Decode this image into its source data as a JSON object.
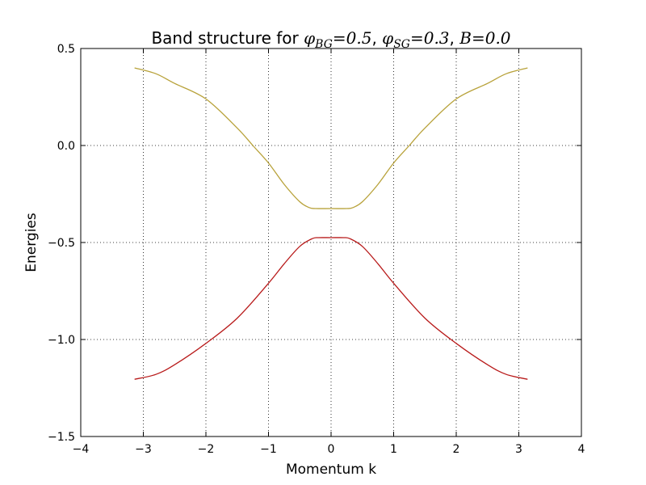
{
  "chart_data": {
    "type": "line",
    "title": "Band structure for φ_BG = 0.5, φ_SG = 0.3, B = 0.0",
    "title_text": "Band structure for ",
    "title_math": [
      {
        "sym": "φ",
        "sub": "BG",
        "eq": "=0.5"
      },
      {
        "sym": "φ",
        "sub": "SG",
        "eq": "=0.3"
      },
      {
        "sym": "B",
        "sub": "",
        "eq": "=0.0"
      }
    ],
    "xlabel": "Momentum k",
    "ylabel": "Energies",
    "xlim": [
      -4,
      4
    ],
    "ylim": [
      -1.5,
      0.5
    ],
    "xticks": [
      -4,
      -3,
      -2,
      -1,
      0,
      1,
      2,
      3,
      4
    ],
    "xtick_labels": [
      "−4",
      "−3",
      "−2",
      "−1",
      "0",
      "1",
      "2",
      "3",
      "4"
    ],
    "yticks": [
      -1.5,
      -1.0,
      -0.5,
      0.0,
      0.5
    ],
    "ytick_labels": [
      "−1.5",
      "−1.0",
      "−0.5",
      "0.0",
      "0.5"
    ],
    "grid": true,
    "series": [
      {
        "color": "#b8a23a",
        "x": [
          -3.14,
          -2.8,
          -2.5,
          -2.0,
          -1.5,
          -1.25,
          -1.0,
          -0.75,
          -0.5,
          -0.35,
          -0.25,
          0.0,
          0.25,
          0.35,
          0.5,
          0.75,
          1.0,
          1.25,
          1.5,
          2.0,
          2.5,
          2.8,
          3.14
        ],
        "y": [
          0.4,
          0.37,
          0.32,
          0.24,
          0.09,
          0.0,
          -0.09,
          -0.2,
          -0.29,
          -0.32,
          -0.325,
          -0.325,
          -0.325,
          -0.32,
          -0.29,
          -0.2,
          -0.09,
          0.0,
          0.09,
          0.24,
          0.32,
          0.37,
          0.4
        ]
      },
      {
        "color": "#b81a1a",
        "x": [
          -3.14,
          -2.8,
          -2.5,
          -2.0,
          -1.5,
          -1.0,
          -0.75,
          -0.5,
          -0.3,
          -0.2,
          0.0,
          0.2,
          0.3,
          0.5,
          0.75,
          1.0,
          1.5,
          2.0,
          2.5,
          2.8,
          3.14
        ],
        "y": [
          -1.205,
          -1.18,
          -1.13,
          -1.02,
          -0.89,
          -0.71,
          -0.61,
          -0.52,
          -0.48,
          -0.475,
          -0.475,
          -0.475,
          -0.48,
          -0.52,
          -0.61,
          -0.71,
          -0.89,
          -1.02,
          -1.13,
          -1.18,
          -1.205
        ]
      }
    ]
  }
}
